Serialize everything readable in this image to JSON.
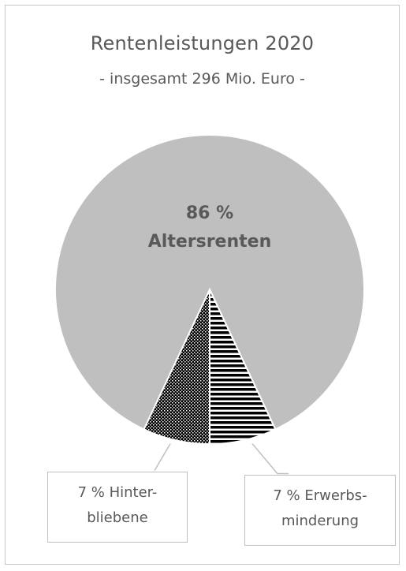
{
  "chart_data": {
    "type": "pie",
    "title": "Rentenleistungen 2020",
    "subtitle": "- insgesamt 296 Mio. Euro -",
    "unit": "%",
    "slices": [
      {
        "name": "Altersrenten",
        "value": 86,
        "label_line1": "86 %",
        "label_line2": "Altersrenten",
        "color": "#bfbfbf",
        "pattern": "solid"
      },
      {
        "name": "Erwerbsminderung",
        "value": 7,
        "label_line1": "7 % Erwerbs-",
        "label_line2": "minderung",
        "color": "#000000",
        "pattern": "horizontal-lines"
      },
      {
        "name": "Hinterbliebene",
        "value": 7,
        "label_line1": "7 % Hinter-",
        "label_line2": "bliebene",
        "color": "#000000",
        "pattern": "dots"
      }
    ],
    "legend": "none"
  }
}
